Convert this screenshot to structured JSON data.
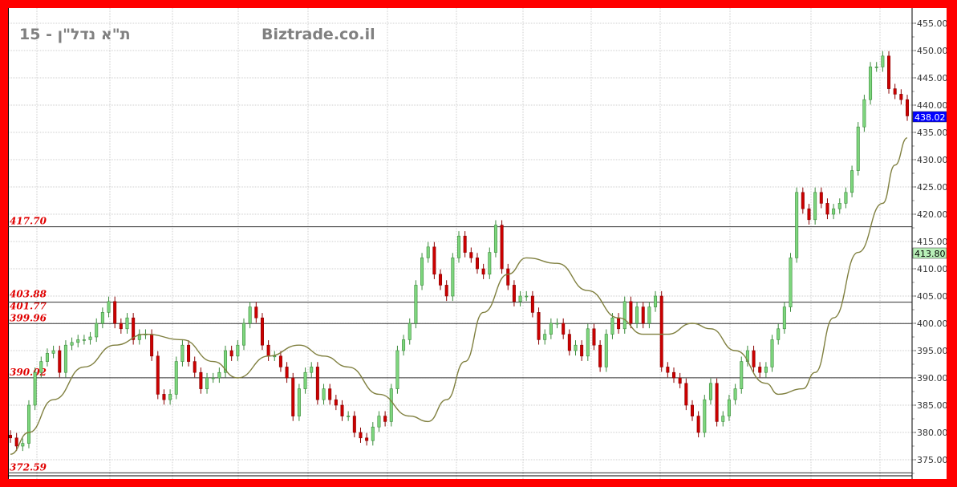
{
  "header": {
    "title": "ת\"א נדל\"ן - 15",
    "watermark": "Biztrade.co.il"
  },
  "chart_data": {
    "type": "candlestick",
    "title": "ת\"א נדל\"ן - 15",
    "ylim": [
      372,
      457
    ],
    "yticks": [
      375,
      380,
      385,
      390,
      395,
      400,
      405,
      410,
      415,
      420,
      425,
      430,
      435,
      440,
      445,
      450,
      455
    ],
    "ytick_labels": [
      "375.00",
      "380.00",
      "385.00",
      "390.00",
      "395.00",
      "400.00",
      "405.00",
      "410.00",
      "415.00",
      "420.00",
      "425.00",
      "430.00",
      "435.00",
      "440.00",
      "445.00",
      "450.00",
      "455.00"
    ],
    "grid": true,
    "close": [
      379,
      377.5,
      378,
      385,
      391,
      393,
      394.5,
      395,
      391,
      396,
      396.5,
      397,
      397,
      397.5,
      400,
      402,
      404,
      400,
      399,
      401,
      397,
      398,
      398,
      394,
      387,
      386,
      387,
      393,
      396,
      393,
      391,
      388,
      390,
      390,
      391,
      395,
      394,
      396,
      400,
      403,
      401,
      396,
      394,
      394,
      392,
      390,
      383,
      388,
      391,
      392,
      386,
      388,
      386,
      385,
      383,
      383,
      380,
      379,
      378.5,
      381,
      383,
      382,
      388,
      395,
      397,
      400,
      407,
      412,
      414,
      409,
      407,
      405,
      412,
      416,
      413,
      412,
      410,
      409,
      413,
      418,
      410,
      407,
      404,
      405,
      405,
      402,
      397,
      398,
      400,
      400,
      398,
      395,
      396,
      394,
      399,
      396,
      392,
      398,
      401,
      399,
      404,
      400,
      403,
      400,
      403,
      405,
      392,
      391,
      390,
      389,
      385,
      383,
      380,
      386,
      389,
      382,
      383,
      386,
      388,
      393,
      395,
      392,
      391,
      392,
      397,
      399,
      403,
      412,
      424,
      421,
      419,
      424,
      422,
      420,
      421,
      422,
      424,
      428,
      436,
      441,
      447,
      447,
      449,
      443,
      442,
      441,
      438.02
    ],
    "moving_average": [
      [
        1,
        376
      ],
      [
        4,
        380
      ],
      [
        8,
        386
      ],
      [
        13,
        392
      ],
      [
        18,
        396
      ],
      [
        23,
        398
      ],
      [
        29,
        397
      ],
      [
        34,
        393
      ],
      [
        38,
        390
      ],
      [
        43,
        394
      ],
      [
        48,
        396
      ],
      [
        52,
        394
      ],
      [
        56,
        392
      ],
      [
        61,
        387
      ],
      [
        66,
        383
      ],
      [
        69,
        382
      ],
      [
        72,
        386
      ],
      [
        75,
        393
      ],
      [
        78,
        402
      ],
      [
        82,
        409
      ],
      [
        85,
        412
      ],
      [
        90,
        411
      ],
      [
        95,
        406
      ],
      [
        100,
        401
      ],
      [
        104,
        398
      ],
      [
        108,
        398
      ],
      [
        112,
        400
      ],
      [
        115,
        399
      ],
      [
        119,
        395
      ],
      [
        124,
        389
      ],
      [
        126,
        387
      ],
      [
        130,
        388
      ],
      [
        132,
        391
      ],
      [
        135,
        401
      ],
      [
        139,
        413
      ],
      [
        143,
        422
      ],
      [
        145,
        429
      ],
      [
        147,
        434
      ]
    ],
    "levels": [
      {
        "value": 417.7,
        "label": "417.70"
      },
      {
        "value": 403.88,
        "label": "403.88"
      },
      {
        "value": 401.77,
        "label": "401.77"
      },
      {
        "value": 399.96,
        "label": "399.96"
      },
      {
        "value": 390.02,
        "label": "390.02"
      },
      {
        "value": 372.59,
        "label": "372.59"
      }
    ],
    "last_price": {
      "value": 438.02,
      "label": "438.02"
    },
    "marker": {
      "value": 413.8,
      "label": "413.80"
    },
    "colors": {
      "up": "#7ed67e",
      "down": "#cc0000",
      "ma": "#808040",
      "level_text": "#e00000",
      "last_price_bg": "#0000ff",
      "marker_bg": "#b8f0b8"
    }
  }
}
